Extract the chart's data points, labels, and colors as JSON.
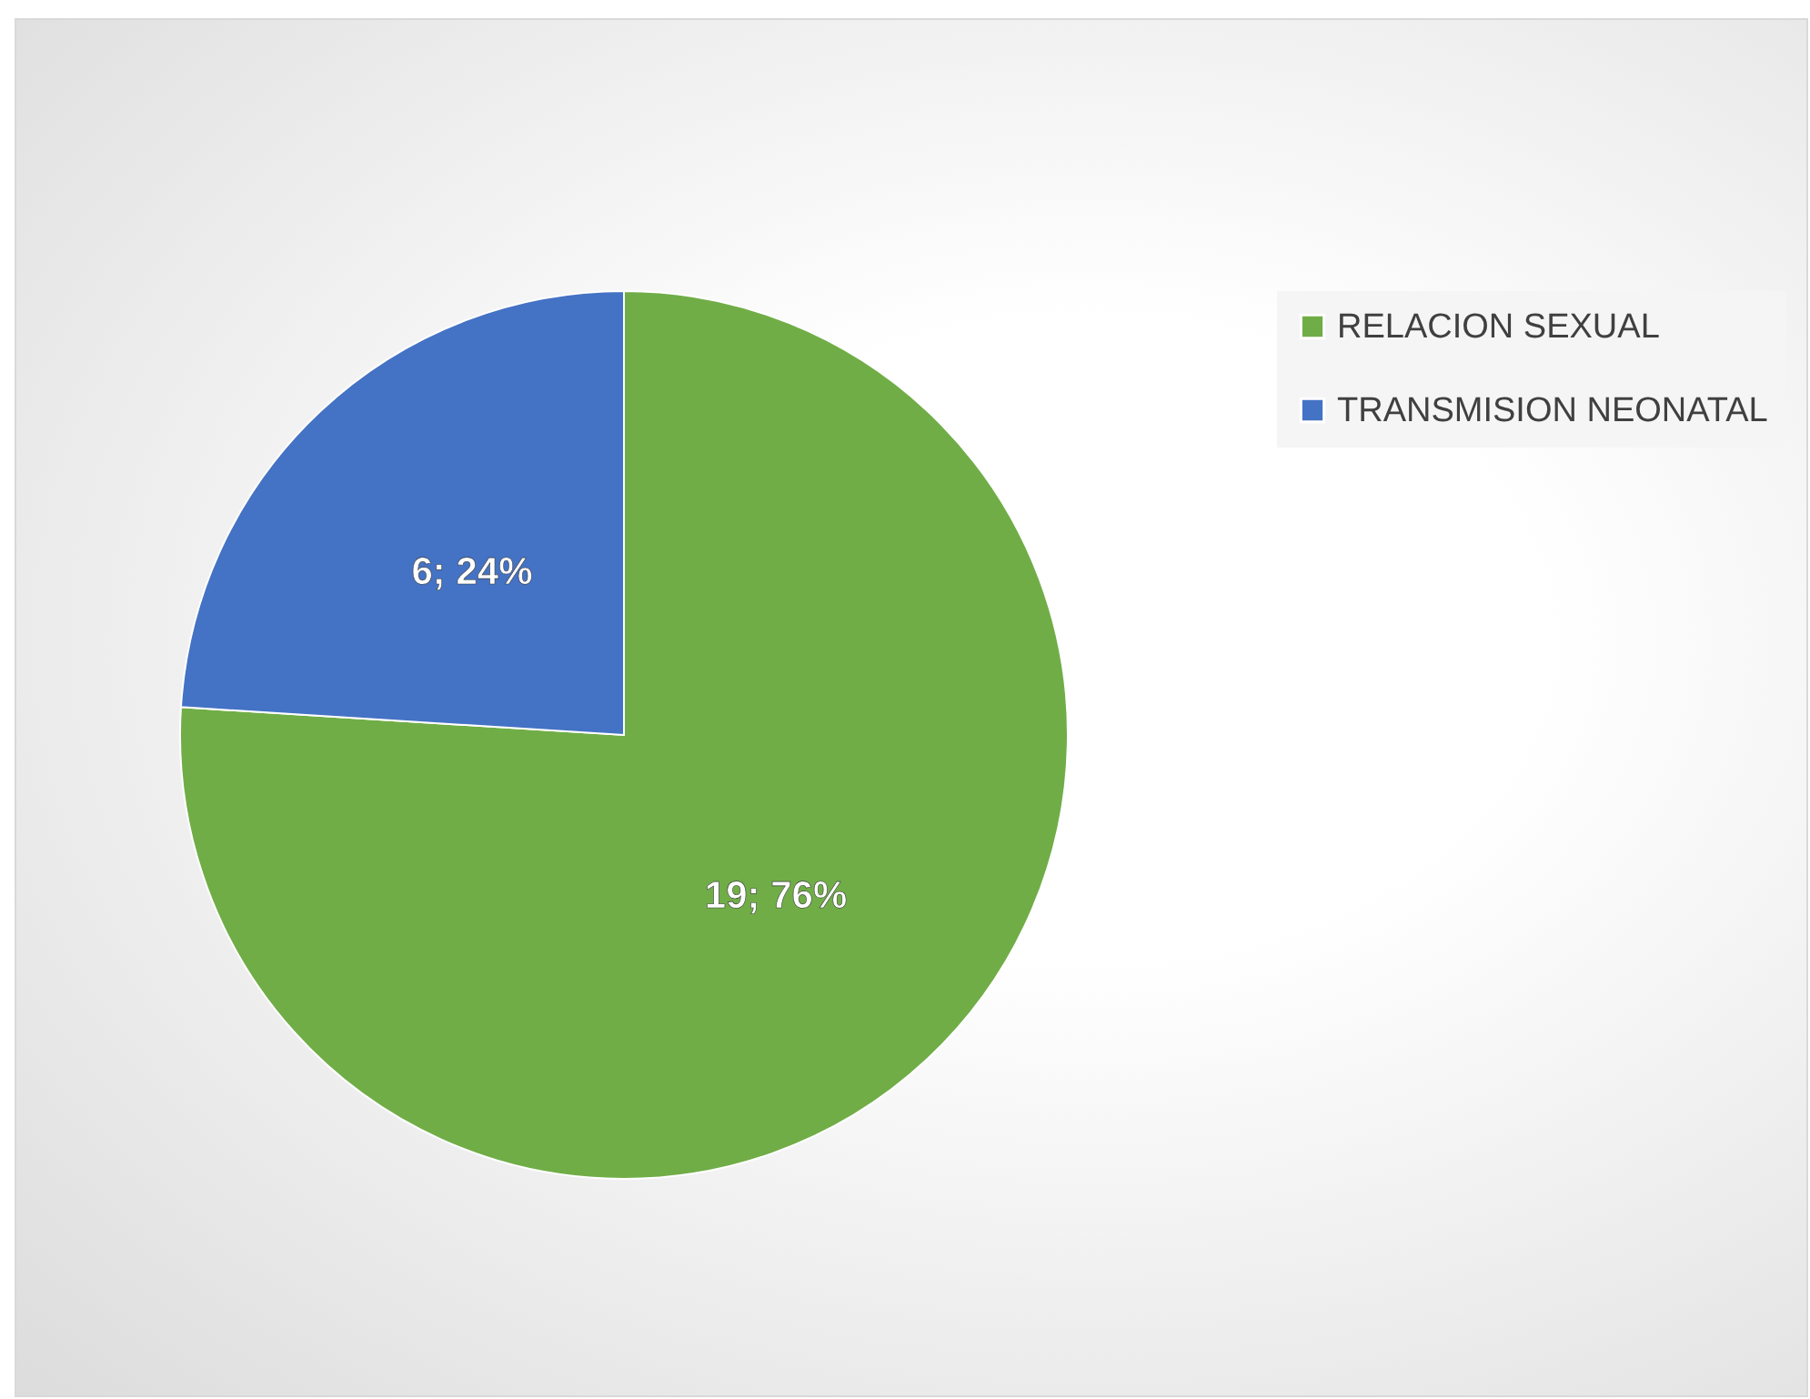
{
  "chart_data": {
    "type": "pie",
    "categories": [
      "RELACION SEXUAL",
      "TRANSMISION NEONATAL"
    ],
    "values": [
      19,
      6
    ],
    "colors": [
      "#70ad47",
      "#4472c4"
    ],
    "value_labels": [
      "19; 76%",
      "6; 24%"
    ],
    "legend": "right"
  }
}
